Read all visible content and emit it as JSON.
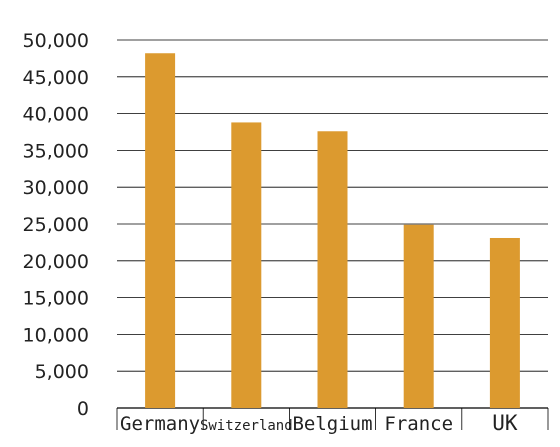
{
  "chart_data": {
    "type": "bar",
    "categories": [
      "Germany",
      "Switzerland",
      "Belgium",
      "France",
      "UK"
    ],
    "values": [
      48200,
      38800,
      37600,
      24900,
      23100
    ],
    "ylim": [
      0,
      50000
    ],
    "yticks": [
      "0",
      "5,000",
      "10,000",
      "15,000",
      "20,000",
      "25,000",
      "30,000",
      "35,000",
      "40,000",
      "45,000",
      "50,000"
    ],
    "grid": true,
    "legend": "none",
    "bar_color": "#DC9A2F",
    "grid_color": "#000000"
  }
}
